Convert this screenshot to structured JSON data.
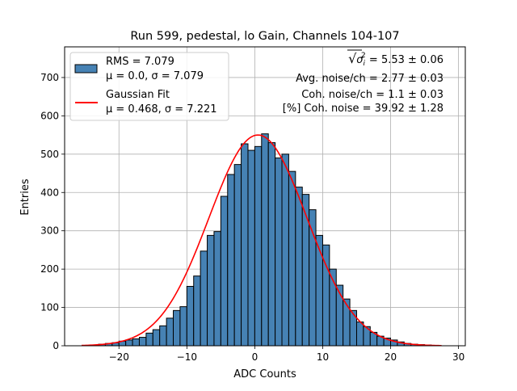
{
  "chart_data": {
    "type": "bar",
    "title": "Run 599, pedestal, lo Gain, Channels 104-107",
    "xlabel": "ADC Counts",
    "ylabel": "Entries",
    "xlim": [
      -28,
      31
    ],
    "ylim": [
      0,
      780
    ],
    "grid": true,
    "legend_placement": "top-left",
    "x_ticks": [
      -20,
      -10,
      0,
      10,
      20,
      30
    ],
    "y_ticks": [
      0,
      100,
      200,
      300,
      400,
      500,
      600,
      700
    ],
    "bin_width": 1,
    "bins": {
      "left_edges": [
        -24,
        -23,
        -22,
        -21,
        -20,
        -19,
        -18,
        -17,
        -16,
        -15,
        -14,
        -13,
        -12,
        -11,
        -10,
        -9,
        -8,
        -7,
        -6,
        -5,
        -4,
        -3,
        -2,
        -1,
        0,
        1,
        2,
        3,
        4,
        5,
        6,
        7,
        8,
        9,
        10,
        11,
        12,
        13,
        14,
        15,
        16,
        17,
        18,
        19,
        20,
        21,
        22,
        23,
        24,
        25,
        26
      ],
      "counts": [
        2,
        4,
        6,
        8,
        12,
        15,
        18,
        22,
        33,
        42,
        52,
        72,
        92,
        102,
        155,
        182,
        247,
        288,
        298,
        390,
        447,
        473,
        527,
        510,
        520,
        553,
        530,
        490,
        500,
        455,
        414,
        395,
        355,
        288,
        263,
        200,
        158,
        122,
        92,
        62,
        50,
        35,
        25,
        20,
        15,
        10,
        6,
        4,
        3,
        2,
        1
      ]
    },
    "series": [
      {
        "name": "RMS = 7.079",
        "name_line2": "μ = 0.0, σ = 7.079",
        "kind": "histogram",
        "color": "#4682b4",
        "edgecolor": "#000000"
      },
      {
        "name": "Gaussian Fit",
        "name_line2": "μ = 0.468, σ = 7.221",
        "kind": "line",
        "color": "#ff0000",
        "mu": 0.468,
        "sigma": 7.221,
        "amplitude": 550,
        "x_range": [
          -25.5,
          27.5
        ]
      }
    ],
    "annotations": [
      {
        "sqrt_prefix": "√",
        "sigma_sym": "σ",
        "sub": "i",
        "sup": "2",
        "rest": " = 5.53 ± 0.06"
      },
      {
        "text": "Avg. noise/ch = 2.77 ± 0.03"
      },
      {
        "text": "Coh. noise/ch = 1.1 ± 0.03"
      },
      {
        "text": "[%] Coh. noise = 39.92 ± 1.28"
      }
    ]
  }
}
